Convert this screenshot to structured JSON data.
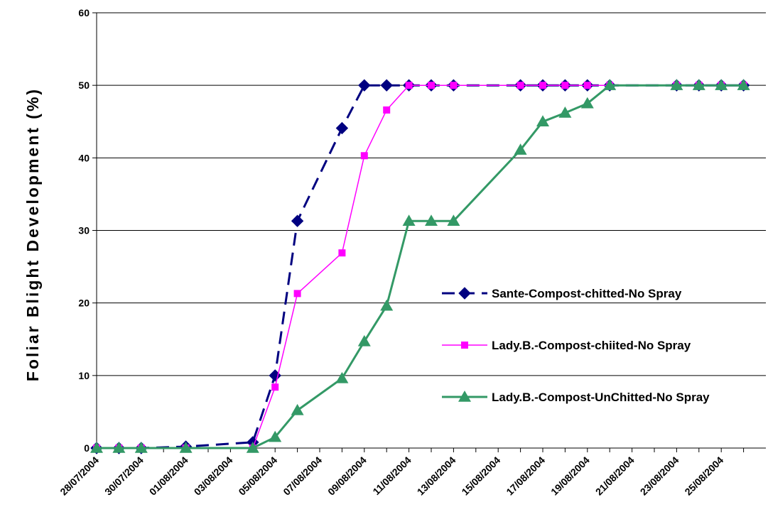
{
  "chart_data": {
    "type": "line",
    "title": "",
    "xlabel": "",
    "ylabel": "Foliar Blight Development (%)",
    "ylim": [
      0,
      60
    ],
    "yticks": [
      0,
      10,
      20,
      30,
      40,
      50,
      60
    ],
    "grid": "horizontal",
    "legend_position": "right-middle",
    "x_tick_labels": [
      "28/07/2004",
      "30/07/2004",
      "01/08/2004",
      "03/08/2004",
      "05/08/2004",
      "07/08/2004",
      "09/08/2004",
      "11/08/2004",
      "13/08/2004",
      "15/08/2004",
      "17/08/2004",
      "19/08/2004",
      "21/08/2004",
      "23/08/2004",
      "25/08/2004"
    ],
    "xlim": [
      "28/07/2004",
      "27/08/2004"
    ],
    "series": [
      {
        "name": "Sante-Compost-chitted-No Spray",
        "color": "#000080",
        "line_style": "dashed",
        "marker": "diamond",
        "points": [
          [
            "28/07/2004",
            0
          ],
          [
            "29/07/2004",
            0
          ],
          [
            "30/07/2004",
            0
          ],
          [
            "01/08/2004",
            0.2
          ],
          [
            "04/08/2004",
            0.8
          ],
          [
            "05/08/2004",
            10
          ],
          [
            "06/08/2004",
            31.3
          ],
          [
            "08/08/2004",
            44.1
          ],
          [
            "09/08/2004",
            50
          ],
          [
            "10/08/2004",
            50
          ],
          [
            "11/08/2004",
            50
          ],
          [
            "12/08/2004",
            50
          ],
          [
            "13/08/2004",
            50
          ],
          [
            "16/08/2004",
            50
          ],
          [
            "17/08/2004",
            50
          ],
          [
            "18/08/2004",
            50
          ],
          [
            "19/08/2004",
            50
          ],
          [
            "20/08/2004",
            50
          ],
          [
            "23/08/2004",
            50
          ],
          [
            "24/08/2004",
            50
          ],
          [
            "25/08/2004",
            50
          ],
          [
            "26/08/2004",
            50
          ]
        ]
      },
      {
        "name": "Lady.B.-Compost-chiited-No Spray",
        "color": "#ff00ff",
        "line_style": "solid",
        "marker": "square",
        "points": [
          [
            "28/07/2004",
            0
          ],
          [
            "29/07/2004",
            0
          ],
          [
            "30/07/2004",
            0
          ],
          [
            "01/08/2004",
            0
          ],
          [
            "04/08/2004",
            0
          ],
          [
            "05/08/2004",
            8.4
          ],
          [
            "06/08/2004",
            21.3
          ],
          [
            "08/08/2004",
            26.9
          ],
          [
            "09/08/2004",
            40.3
          ],
          [
            "10/08/2004",
            46.6
          ],
          [
            "11/08/2004",
            50
          ],
          [
            "12/08/2004",
            50
          ],
          [
            "13/08/2004",
            50
          ],
          [
            "16/08/2004",
            50
          ],
          [
            "17/08/2004",
            50
          ],
          [
            "18/08/2004",
            50
          ],
          [
            "19/08/2004",
            50
          ],
          [
            "20/08/2004",
            50
          ],
          [
            "23/08/2004",
            50
          ],
          [
            "24/08/2004",
            50
          ],
          [
            "25/08/2004",
            50
          ],
          [
            "26/08/2004",
            50
          ]
        ]
      },
      {
        "name": "Lady.B.-Compost-UnChitted-No Spray",
        "color": "#339966",
        "line_style": "solid",
        "marker": "triangle",
        "points": [
          [
            "28/07/2004",
            0
          ],
          [
            "29/07/2004",
            0
          ],
          [
            "30/07/2004",
            0
          ],
          [
            "01/08/2004",
            0
          ],
          [
            "04/08/2004",
            0
          ],
          [
            "05/08/2004",
            1.5
          ],
          [
            "06/08/2004",
            5.2
          ],
          [
            "08/08/2004",
            9.6
          ],
          [
            "09/08/2004",
            14.7
          ],
          [
            "10/08/2004",
            19.6
          ],
          [
            "11/08/2004",
            31.3
          ],
          [
            "12/08/2004",
            31.3
          ],
          [
            "13/08/2004",
            31.3
          ],
          [
            "16/08/2004",
            41.1
          ],
          [
            "17/08/2004",
            45
          ],
          [
            "18/08/2004",
            46.2
          ],
          [
            "19/08/2004",
            47.5
          ],
          [
            "20/08/2004",
            50
          ],
          [
            "23/08/2004",
            50
          ],
          [
            "24/08/2004",
            50
          ],
          [
            "25/08/2004",
            50
          ],
          [
            "26/08/2004",
            50
          ]
        ]
      }
    ]
  }
}
